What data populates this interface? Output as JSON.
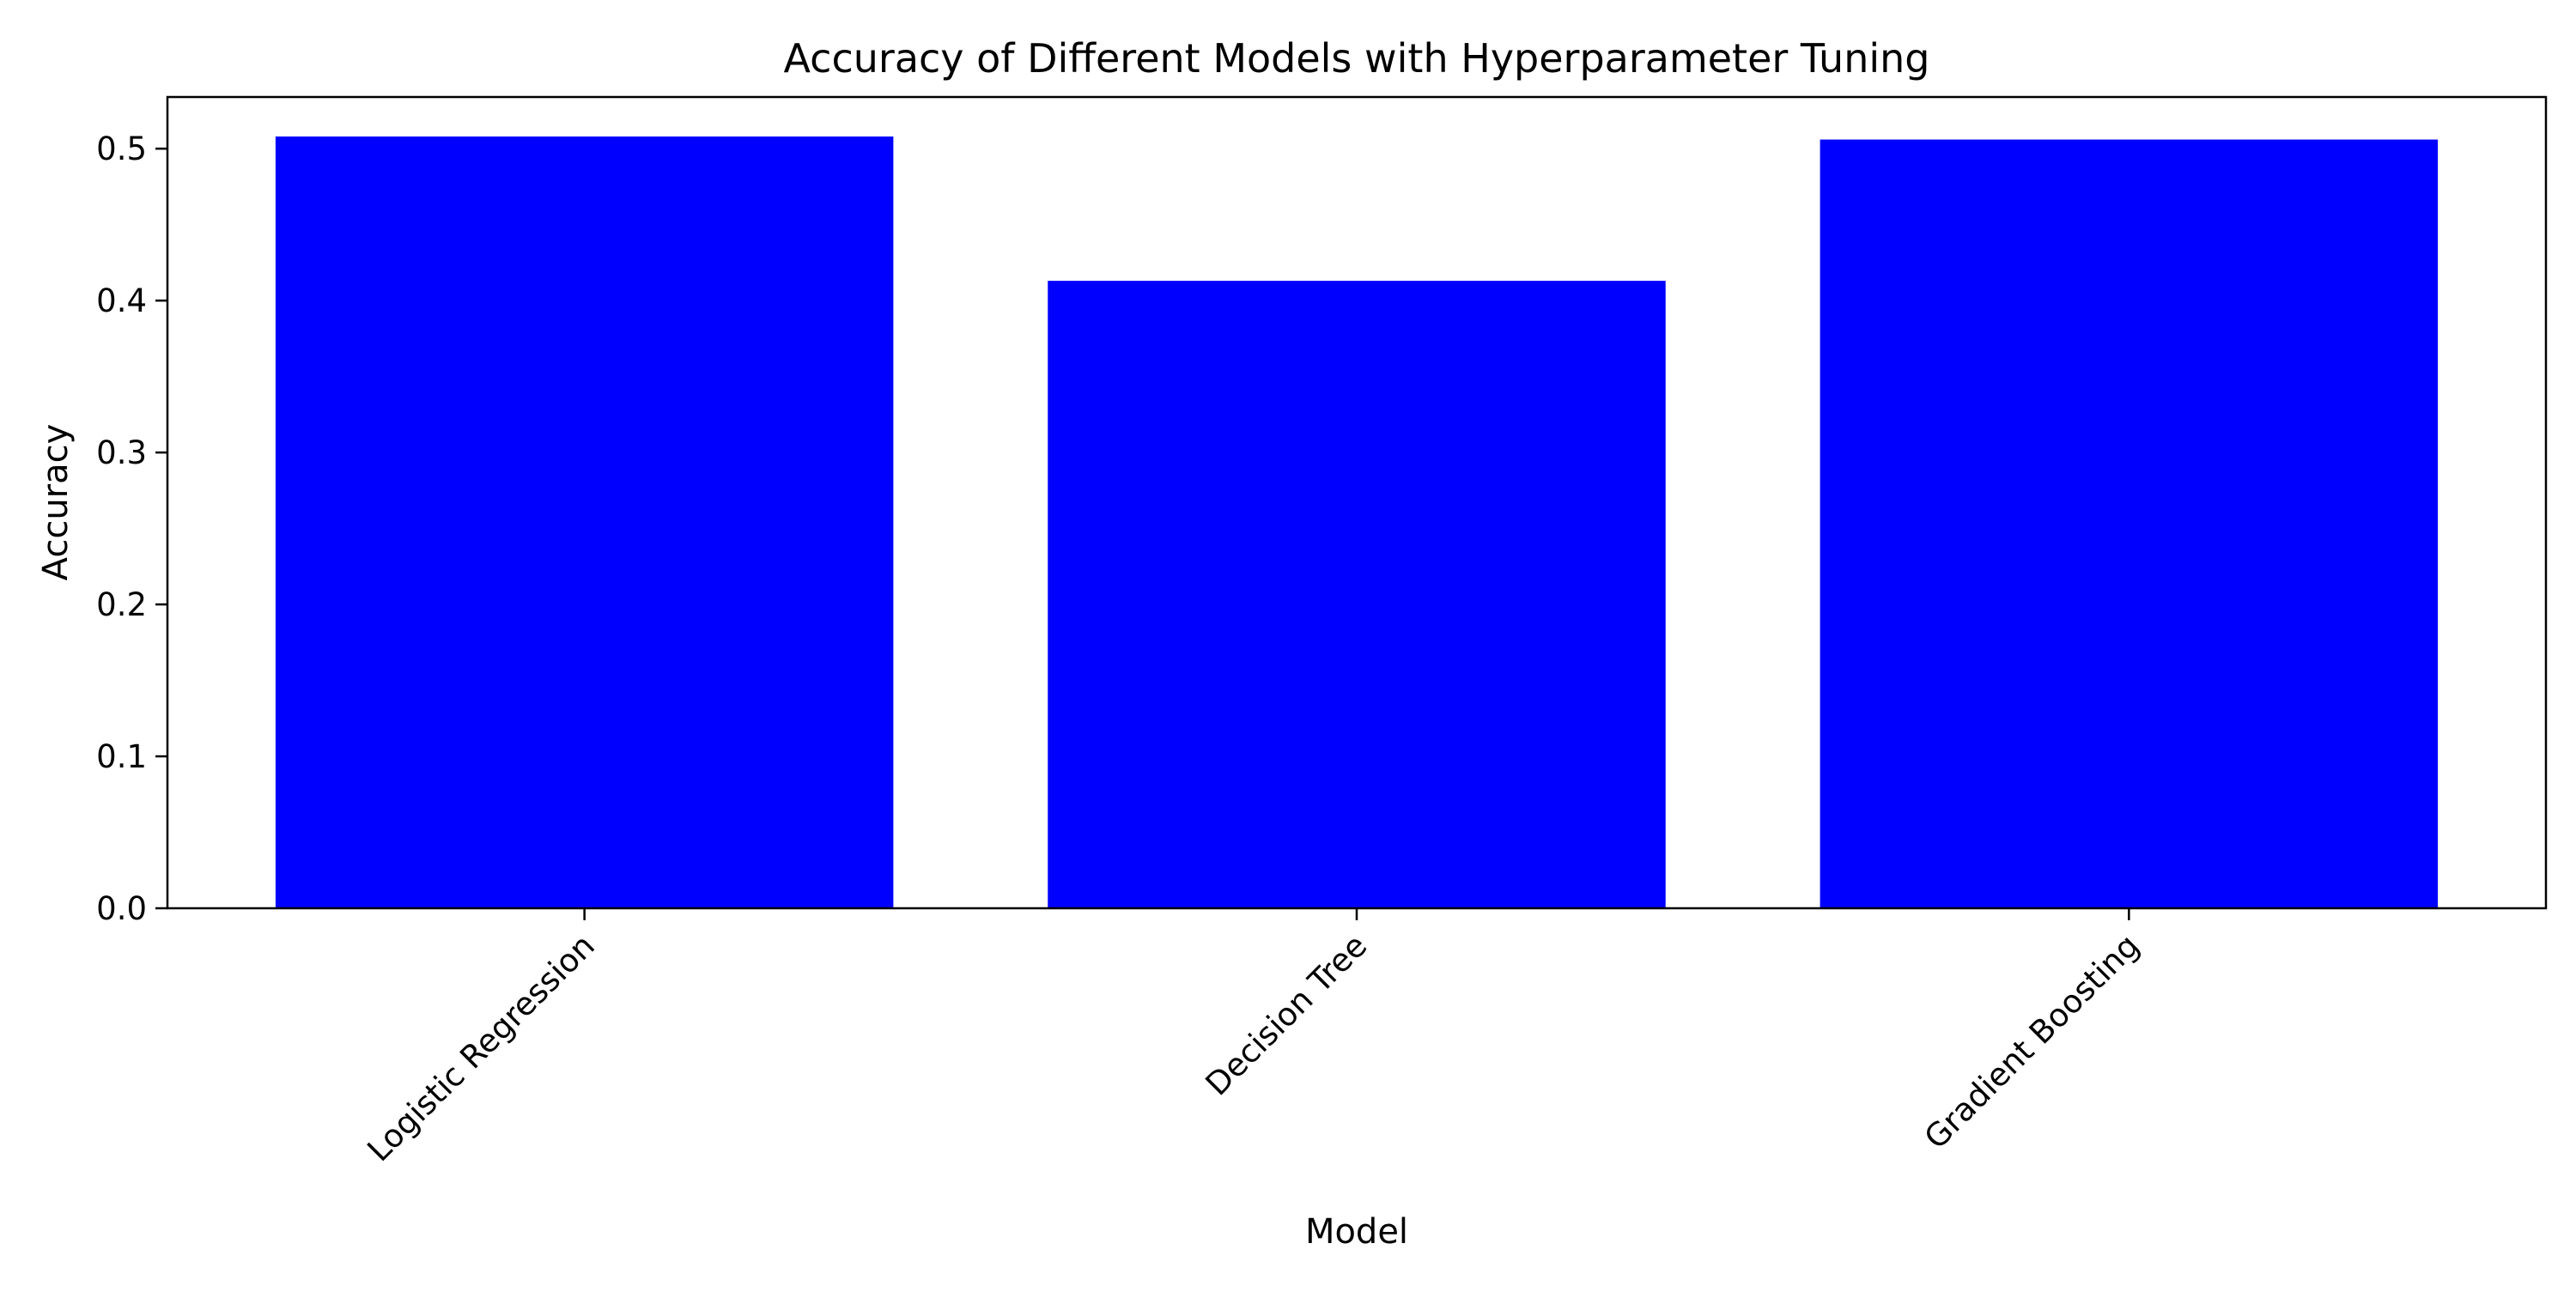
{
  "chart_data": {
    "type": "bar",
    "title": "Accuracy of Different Models with Hyperparameter Tuning",
    "xlabel": "Model",
    "ylabel": "Accuracy",
    "categories": [
      "Logistic Regression",
      "Decision Tree",
      "Gradient Boosting"
    ],
    "values": [
      0.508,
      0.413,
      0.506
    ],
    "ylim": [
      0,
      0.534
    ],
    "yticks": [
      0.0,
      0.1,
      0.2,
      0.3,
      0.4,
      0.5
    ],
    "ytick_labels": [
      "0.0",
      "0.1",
      "0.2",
      "0.3",
      "0.4",
      "0.5"
    ],
    "bar_color": "#0000ff",
    "grid": false,
    "legend": false
  }
}
